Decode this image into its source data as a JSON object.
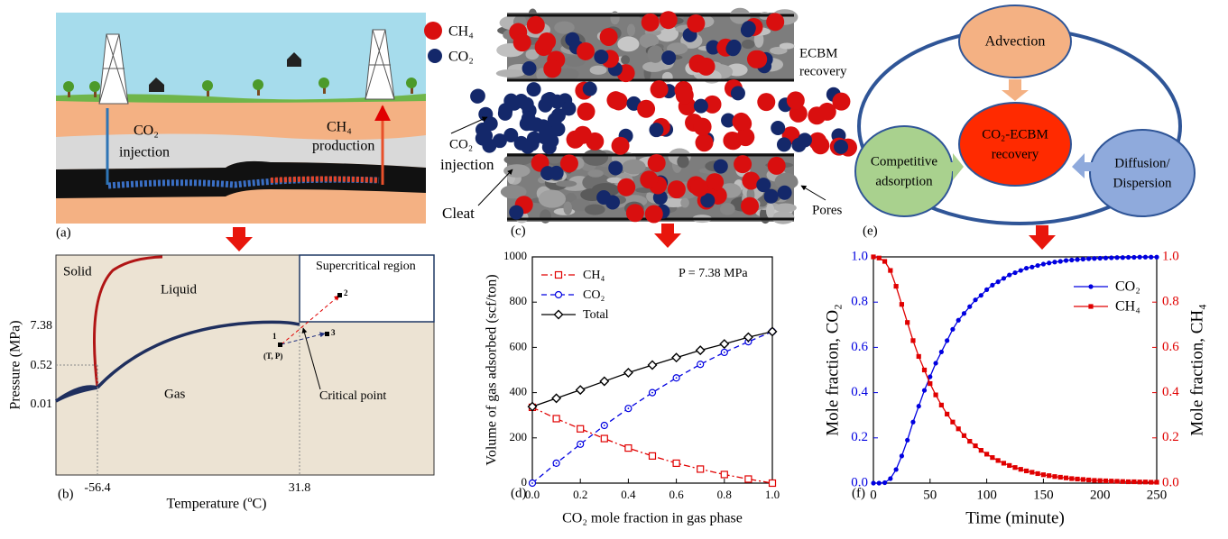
{
  "panel_a": {
    "label": "(a)",
    "co2": "CO₂",
    "injection": "injection",
    "ch4": "CH₄",
    "production": "production"
  },
  "panel_b": {
    "label": "(b)",
    "solid": "Solid",
    "liquid": "Liquid",
    "gas": "Gas",
    "supercritical": "Supercritical region",
    "critical_point": "Critical point",
    "point_1": "1",
    "point_2": "2",
    "point_3": "3",
    "tp": "(T, P)",
    "y_label": "Pressure (MPa)",
    "x_label": "Temperature (ºC)",
    "y_ticks": [
      "7.38",
      "0.52",
      "0.01"
    ],
    "x_ticks": [
      "-56.4",
      "31.8"
    ]
  },
  "panel_c": {
    "label": "(c)",
    "legend": [
      "CH₄",
      "CO₂"
    ],
    "ecbm": [
      "ECBM",
      "recovery"
    ],
    "injection": [
      "CO₂",
      "injection"
    ],
    "cleat": "Cleat",
    "pores": "Pores"
  },
  "panel_e": {
    "label": "(e)",
    "nodes": [
      {
        "label": [
          "Advection"
        ]
      },
      {
        "label": [
          "CO₂-ECBM",
          "recovery"
        ]
      },
      {
        "label": [
          "Competitive",
          "adsorption"
        ]
      },
      {
        "label": [
          "Diffusion/",
          "Dispersion"
        ]
      }
    ]
  },
  "chart_data": [
    {
      "type": "line",
      "panel_label": "(d)",
      "annotation": "P = 7.38 MPa",
      "x_label": "CO₂ mole fraction in gas phase",
      "y_label": "Volume of gas adsorbed (scf/ton)",
      "x": [
        0,
        0.1,
        0.2,
        0.3,
        0.4,
        0.5,
        0.6,
        0.7,
        0.8,
        0.9,
        1.0
      ],
      "xlim": [
        0,
        1
      ],
      "xticks": [
        {
          "value": 0,
          "label": "0.0"
        },
        0.2,
        0.4,
        0.6,
        0.8,
        {
          "value": 1,
          "label": "1.0"
        }
      ],
      "ylim": [
        0,
        1000
      ],
      "yticks": [
        0,
        200,
        400,
        600,
        800,
        1000
      ],
      "legend": "upper left",
      "series": [
        {
          "name": "CH₄",
          "color": "#e00000",
          "marker": "square",
          "linestyle": "dashdot",
          "values": [
            335,
            285,
            240,
            197,
            155,
            120,
            88,
            62,
            38,
            18,
            0
          ]
        },
        {
          "name": "CO₂",
          "color": "#0000e0",
          "marker": "circle",
          "linestyle": "dashed",
          "values": [
            0,
            88,
            172,
            255,
            330,
            400,
            465,
            525,
            578,
            625,
            670
          ]
        },
        {
          "name": "Total",
          "color": "#000000",
          "marker": "diamond",
          "linestyle": "solid",
          "values": [
            338,
            375,
            412,
            450,
            488,
            522,
            555,
            587,
            615,
            645,
            670
          ]
        }
      ]
    },
    {
      "type": "line",
      "panel_label": "(f)",
      "x_label": "Time (minute)",
      "y_label": "Mole fraction, CO₂",
      "y2_label": "Mole fraction, CH₄",
      "x": [
        0,
        5,
        10,
        15,
        20,
        25,
        30,
        35,
        40,
        45,
        50,
        55,
        60,
        65,
        70,
        75,
        80,
        85,
        90,
        95,
        100,
        105,
        110,
        115,
        120,
        125,
        130,
        135,
        140,
        145,
        150,
        155,
        160,
        165,
        170,
        175,
        180,
        185,
        190,
        195,
        200,
        205,
        210,
        215,
        220,
        225,
        230,
        235,
        240,
        245,
        250
      ],
      "xlim": [
        0,
        250
      ],
      "xticks": [
        0,
        50,
        100,
        150,
        200,
        250
      ],
      "ylim": [
        0,
        1
      ],
      "yticks": [
        {
          "value": 0,
          "label": "0.0"
        },
        0.2,
        0.4,
        0.6,
        0.8,
        {
          "value": 1,
          "label": "1.0"
        }
      ],
      "y2lim": [
        0,
        1
      ],
      "y2ticks": [
        {
          "value": 0,
          "label": "0.0"
        },
        0.2,
        0.4,
        0.6,
        0.8,
        {
          "value": 1,
          "label": "1.0"
        }
      ],
      "y_color": "#0000e0",
      "y2_color": "#e00000",
      "legend": "upper right",
      "series": [
        {
          "name": "CO₂",
          "color": "#0000e0",
          "marker": "dot",
          "linestyle": "solid",
          "values": [
            0,
            0,
            0.002,
            0.02,
            0.06,
            0.12,
            0.19,
            0.27,
            0.34,
            0.41,
            0.47,
            0.53,
            0.58,
            0.63,
            0.68,
            0.72,
            0.75,
            0.78,
            0.81,
            0.83,
            0.855,
            0.875,
            0.89,
            0.905,
            0.92,
            0.93,
            0.94,
            0.95,
            0.955,
            0.962,
            0.968,
            0.973,
            0.977,
            0.98,
            0.984,
            0.986,
            0.988,
            0.99,
            0.992,
            0.993,
            0.994,
            0.995,
            0.996,
            0.997,
            0.997,
            0.998,
            0.998,
            0.999,
            0.999,
            0.999,
            0.999
          ]
        },
        {
          "name": "CH₄",
          "color": "#e00000",
          "marker": "fsquare",
          "linestyle": "solid",
          "axis": "y2",
          "values": [
            1,
            0.995,
            0.98,
            0.94,
            0.87,
            0.79,
            0.71,
            0.63,
            0.56,
            0.5,
            0.44,
            0.39,
            0.345,
            0.305,
            0.27,
            0.24,
            0.21,
            0.185,
            0.165,
            0.145,
            0.128,
            0.113,
            0.1,
            0.088,
            0.078,
            0.069,
            0.061,
            0.054,
            0.048,
            0.042,
            0.037,
            0.033,
            0.029,
            0.026,
            0.023,
            0.02,
            0.018,
            0.016,
            0.014,
            0.012,
            0.011,
            0.01,
            0.009,
            0.008,
            0.007,
            0.006,
            0.006,
            0.005,
            0.005,
            0.004,
            0.004
          ]
        }
      ]
    }
  ]
}
